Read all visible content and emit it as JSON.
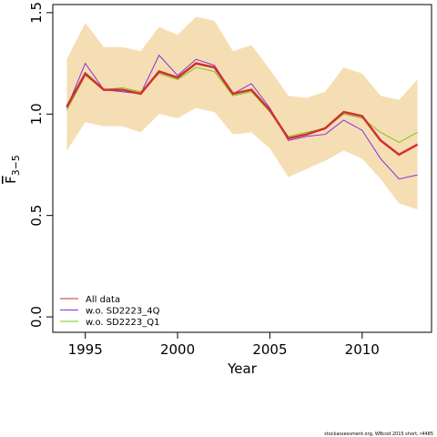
{
  "chart_data": {
    "type": "line",
    "xlabel": "Year",
    "ylabel_main": "F",
    "ylabel_sub": "3−5",
    "footnote": "stockassessment.org, WBcod 2015 short, r4485",
    "x": [
      1994,
      1995,
      1996,
      1997,
      1998,
      1999,
      2000,
      2001,
      2002,
      2003,
      2004,
      2005,
      2006,
      2007,
      2008,
      2009,
      2010,
      2011,
      2012,
      2013
    ],
    "band": {
      "color": "#f5deb3",
      "upper": [
        1.27,
        1.45,
        1.33,
        1.33,
        1.31,
        1.43,
        1.39,
        1.48,
        1.46,
        1.31,
        1.34,
        1.22,
        1.09,
        1.08,
        1.11,
        1.23,
        1.2,
        1.09,
        1.07,
        1.17
      ],
      "lower": [
        0.82,
        0.96,
        0.94,
        0.94,
        0.91,
        1.0,
        0.98,
        1.03,
        1.01,
        0.9,
        0.91,
        0.83,
        0.69,
        0.73,
        0.77,
        0.82,
        0.78,
        0.68,
        0.56,
        0.53
      ]
    },
    "series": [
      {
        "name": "All data",
        "color": "#d03030",
        "values": [
          1.036,
          1.2,
          1.12,
          1.12,
          1.1,
          1.21,
          1.18,
          1.25,
          1.23,
          1.1,
          1.12,
          1.02,
          0.88,
          0.9,
          0.93,
          1.01,
          0.99,
          0.87,
          0.8,
          0.85
        ]
      },
      {
        "name": "w.o. SD2223_4Q",
        "color": "#8a2be2",
        "values": [
          1.03,
          1.25,
          1.12,
          1.11,
          1.1,
          1.29,
          1.19,
          1.27,
          1.24,
          1.1,
          1.15,
          1.03,
          0.87,
          0.89,
          0.9,
          0.97,
          0.92,
          0.78,
          0.68,
          0.7
        ]
      },
      {
        "name": "w.o. SD2223_Q1",
        "color": "#7fc31c",
        "values": [
          1.02,
          1.19,
          1.12,
          1.13,
          1.11,
          1.2,
          1.17,
          1.23,
          1.21,
          1.09,
          1.11,
          1.01,
          0.89,
          0.91,
          0.93,
          1.0,
          0.98,
          0.91,
          0.86,
          0.91
        ]
      }
    ],
    "xlim": [
      1993.24,
      2013.76
    ],
    "ylim": [
      -0.076,
      1.54
    ],
    "xticks": [
      1995,
      2000,
      2005,
      2010
    ],
    "yticks": [
      {
        "value": 0,
        "label": "0.0"
      },
      {
        "value": 0.5,
        "label": "0.5"
      },
      {
        "value": 1,
        "label": "1.0"
      },
      {
        "value": 1.5,
        "label": "1.5"
      }
    ],
    "legend": "bottom-left"
  }
}
